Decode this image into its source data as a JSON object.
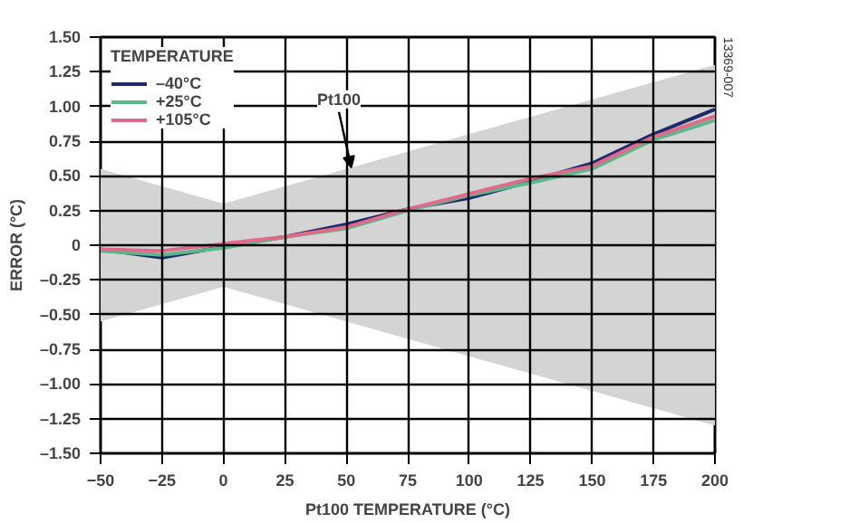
{
  "chart_data": {
    "type": "line",
    "xlabel": "Pt100 TEMPERATURE (°C)",
    "ylabel": "ERROR (°C)",
    "legend_title": "TEMPERATURE",
    "x": [
      -50,
      -25,
      0,
      25,
      50,
      75,
      100,
      125,
      150,
      175,
      200
    ],
    "series": [
      {
        "type": "area",
        "color": "#d4d4d4",
        "x": [
          -50,
          0,
          200
        ],
        "values": [
          0.55,
          0.3,
          1.3
        ]
      },
      {
        "type": "area",
        "color": "#d4d4d4",
        "x": [
          -50,
          0,
          200
        ],
        "values": [
          -0.55,
          -0.3,
          -1.3
        ]
      },
      {
        "name": "–40°C",
        "color": "#1f2a6b",
        "values": [
          -0.03,
          -0.09,
          -0.01,
          0.06,
          0.15,
          0.26,
          0.34,
          0.46,
          0.59,
          0.8,
          0.98
        ]
      },
      {
        "name": "+25°C",
        "color": "#5cb88a",
        "values": [
          -0.04,
          -0.07,
          -0.02,
          0.06,
          0.12,
          0.25,
          0.36,
          0.45,
          0.55,
          0.76,
          0.9
        ]
      },
      {
        "name": "+105°C",
        "color": "#e06a8a",
        "values": [
          -0.03,
          -0.04,
          0.01,
          0.06,
          0.13,
          0.26,
          0.37,
          0.48,
          0.57,
          0.78,
          0.93
        ]
      }
    ],
    "annotations": [
      {
        "text": "Pt100",
        "x": 52,
        "y": 0.56
      },
      "13369-007"
    ],
    "xlim": [
      -50,
      200
    ],
    "xticks": [
      -50,
      -25,
      0,
      25,
      50,
      75,
      100,
      125,
      150,
      175,
      200
    ],
    "ylim": [
      -1.5,
      1.5
    ],
    "yticks": [
      {
        "value": -1.5,
        "label": "–1.50"
      },
      {
        "value": -1.25,
        "label": "–1.25"
      },
      {
        "value": -1.0,
        "label": "–1.00"
      },
      {
        "value": -0.75,
        "label": "–0.75"
      },
      {
        "value": -0.5,
        "label": "–0.50"
      },
      {
        "value": -0.25,
        "label": "–0.25"
      },
      {
        "value": 0,
        "label": "0"
      },
      {
        "value": 0.25,
        "label": "0.25"
      },
      {
        "value": 0.5,
        "label": "0.50"
      },
      {
        "value": 0.75,
        "label": "0.75"
      },
      {
        "value": 1.0,
        "label": "1.00"
      },
      {
        "value": 1.25,
        "label": "1.25"
      },
      {
        "value": 1.5,
        "label": "1.50"
      }
    ],
    "grid": true,
    "legend": "top left",
    "line_style": "solid",
    "marker": "none"
  }
}
